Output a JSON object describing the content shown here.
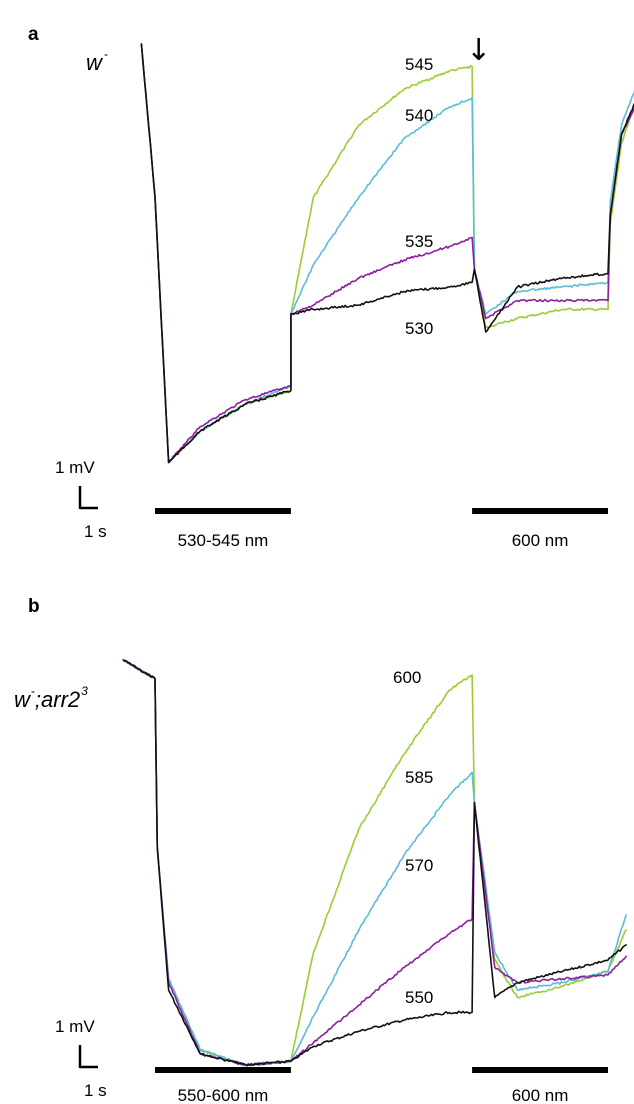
{
  "colors": {
    "green": "#9acd32",
    "cyan": "#5bbcd8",
    "purple": "#8b1fa0",
    "black": "#111111"
  },
  "chart_data": [
    {
      "type": "line",
      "panel": "a",
      "genotype_main": "w",
      "genotype_sup": "-",
      "scale_bar": {
        "voltage": "1 mV",
        "time": "1 s"
      },
      "stimuli": [
        {
          "label": "530-545 nm",
          "start_s": 0.0,
          "end_s": 3.0
        },
        {
          "label": "600 nm",
          "start_s": 7.0,
          "end_s": 10.0
        }
      ],
      "arrow": "↓",
      "series": [
        {
          "name": "545",
          "color": "#9acd32",
          "points": [
            [
              -0.3,
              0.0
            ],
            [
              0.0,
              -3.4
            ],
            [
              0.3,
              -9.3
            ],
            [
              1.0,
              -8.6
            ],
            [
              2.0,
              -8.0
            ],
            [
              3.0,
              -7.7
            ],
            [
              3.0,
              -6.0
            ],
            [
              3.5,
              -3.4
            ],
            [
              4.5,
              -1.8
            ],
            [
              5.5,
              -1.0
            ],
            [
              6.5,
              -0.6
            ],
            [
              7.0,
              -0.5
            ],
            [
              7.05,
              -5.0
            ],
            [
              7.3,
              -6.3
            ],
            [
              8.0,
              -6.1
            ],
            [
              9.0,
              -5.9
            ],
            [
              10.0,
              -5.9
            ],
            [
              10.05,
              -4.0
            ],
            [
              10.3,
              -2.2
            ],
            [
              10.6,
              -1.3
            ]
          ]
        },
        {
          "name": "540",
          "color": "#5bbcd8",
          "points": [
            [
              -0.3,
              0.0
            ],
            [
              0.0,
              -3.4
            ],
            [
              0.3,
              -9.3
            ],
            [
              1.0,
              -8.6
            ],
            [
              2.0,
              -8.0
            ],
            [
              3.0,
              -7.6
            ],
            [
              3.0,
              -6.0
            ],
            [
              3.5,
              -4.9
            ],
            [
              4.5,
              -3.4
            ],
            [
              5.5,
              -2.1
            ],
            [
              6.5,
              -1.4
            ],
            [
              7.0,
              -1.2
            ],
            [
              7.05,
              -5.0
            ],
            [
              7.3,
              -6.0
            ],
            [
              8.0,
              -5.5
            ],
            [
              9.0,
              -5.4
            ],
            [
              10.0,
              -5.3
            ],
            [
              10.05,
              -3.5
            ],
            [
              10.3,
              -1.8
            ],
            [
              10.6,
              -1.0
            ]
          ]
        },
        {
          "name": "535",
          "color": "#8b1fa0",
          "points": [
            [
              -0.3,
              0.0
            ],
            [
              0.0,
              -3.4
            ],
            [
              0.3,
              -9.3
            ],
            [
              1.0,
              -8.5
            ],
            [
              2.0,
              -7.9
            ],
            [
              3.0,
              -7.6
            ],
            [
              3.0,
              -6.0
            ],
            [
              3.5,
              -5.8
            ],
            [
              4.0,
              -5.5
            ],
            [
              4.5,
              -5.2
            ],
            [
              5.5,
              -4.8
            ],
            [
              6.5,
              -4.5
            ],
            [
              7.0,
              -4.3
            ],
            [
              7.05,
              -5.0
            ],
            [
              7.3,
              -6.1
            ],
            [
              8.0,
              -5.7
            ],
            [
              9.0,
              -5.7
            ],
            [
              10.0,
              -5.7
            ],
            [
              10.05,
              -3.8
            ],
            [
              10.3,
              -2.0
            ],
            [
              10.6,
              -1.4
            ]
          ]
        },
        {
          "name": "530",
          "color": "#111111",
          "points": [
            [
              -0.3,
              0.0
            ],
            [
              0.0,
              -3.4
            ],
            [
              0.3,
              -9.3
            ],
            [
              1.0,
              -8.6
            ],
            [
              2.0,
              -8.0
            ],
            [
              3.0,
              -7.7
            ],
            [
              3.0,
              -6.0
            ],
            [
              3.5,
              -5.9
            ],
            [
              4.5,
              -5.8
            ],
            [
              5.5,
              -5.5
            ],
            [
              6.5,
              -5.4
            ],
            [
              7.0,
              -5.3
            ],
            [
              7.05,
              -5.0
            ],
            [
              7.3,
              -6.4
            ],
            [
              8.0,
              -5.4
            ],
            [
              9.0,
              -5.2
            ],
            [
              10.0,
              -5.1
            ],
            [
              10.05,
              -3.8
            ],
            [
              10.3,
              -2.0
            ],
            [
              10.6,
              -1.3
            ]
          ]
        }
      ]
    },
    {
      "type": "line",
      "panel": "b",
      "genotype_main": "w",
      "genotype_sup": "-",
      "genotype_rest": ";arr2",
      "genotype_sup2": "3",
      "scale_bar": {
        "voltage": "1 mV",
        "time": "1 s"
      },
      "stimuli": [
        {
          "label": "550-600 nm",
          "start_s": 0.0,
          "end_s": 3.0
        },
        {
          "label": "600 nm",
          "start_s": 7.0,
          "end_s": 10.0
        }
      ],
      "series": [
        {
          "name": "600",
          "color": "#9acd32",
          "points": [
            [
              -0.7,
              0.0
            ],
            [
              0.0,
              -0.5
            ],
            [
              0.05,
              -5.0
            ],
            [
              0.3,
              -8.5
            ],
            [
              1.0,
              -10.4
            ],
            [
              2.0,
              -10.8
            ],
            [
              3.0,
              -10.7
            ],
            [
              3.5,
              -7.8
            ],
            [
              4.5,
              -4.5
            ],
            [
              5.5,
              -2.5
            ],
            [
              6.5,
              -0.8
            ],
            [
              7.0,
              -0.4
            ],
            [
              7.05,
              -3.8
            ],
            [
              7.5,
              -8.0
            ],
            [
              8.0,
              -9.0
            ],
            [
              9.0,
              -8.7
            ],
            [
              10.0,
              -8.3
            ],
            [
              10.4,
              -7.2
            ]
          ]
        },
        {
          "name": "585",
          "color": "#5bbcd8",
          "points": [
            [
              -0.7,
              0.0
            ],
            [
              0.0,
              -0.5
            ],
            [
              0.05,
              -5.0
            ],
            [
              0.3,
              -8.5
            ],
            [
              1.0,
              -10.4
            ],
            [
              2.0,
              -10.8
            ],
            [
              3.0,
              -10.7
            ],
            [
              3.5,
              -9.5
            ],
            [
              4.5,
              -7.2
            ],
            [
              5.5,
              -5.2
            ],
            [
              6.5,
              -3.6
            ],
            [
              7.0,
              -3.0
            ],
            [
              7.05,
              -3.8
            ],
            [
              7.5,
              -7.8
            ],
            [
              8.0,
              -8.8
            ],
            [
              9.0,
              -8.6
            ],
            [
              10.0,
              -8.3
            ],
            [
              10.4,
              -6.8
            ]
          ]
        },
        {
          "name": "570",
          "color": "#8b1fa0",
          "points": [
            [
              -0.7,
              0.0
            ],
            [
              0.0,
              -0.5
            ],
            [
              0.05,
              -5.0
            ],
            [
              0.3,
              -8.6
            ],
            [
              1.0,
              -10.5
            ],
            [
              2.0,
              -10.8
            ],
            [
              3.0,
              -10.7
            ],
            [
              3.5,
              -10.2
            ],
            [
              4.5,
              -9.2
            ],
            [
              5.5,
              -8.2
            ],
            [
              6.5,
              -7.3
            ],
            [
              7.0,
              -6.9
            ],
            [
              7.05,
              -3.8
            ],
            [
              7.5,
              -8.2
            ],
            [
              8.0,
              -8.6
            ],
            [
              9.0,
              -8.5
            ],
            [
              10.0,
              -8.4
            ],
            [
              10.4,
              -7.9
            ]
          ]
        },
        {
          "name": "550",
          "color": "#111111",
          "points": [
            [
              -0.7,
              0.0
            ],
            [
              0.0,
              -0.5
            ],
            [
              0.05,
              -5.0
            ],
            [
              0.3,
              -8.8
            ],
            [
              1.0,
              -10.5
            ],
            [
              2.0,
              -10.8
            ],
            [
              3.0,
              -10.7
            ],
            [
              3.5,
              -10.3
            ],
            [
              4.5,
              -9.9
            ],
            [
              5.5,
              -9.6
            ],
            [
              6.5,
              -9.4
            ],
            [
              7.0,
              -9.4
            ],
            [
              7.05,
              -3.8
            ],
            [
              7.5,
              -9.0
            ],
            [
              8.0,
              -8.6
            ],
            [
              9.0,
              -8.3
            ],
            [
              10.0,
              -8.0
            ],
            [
              10.4,
              -7.6
            ]
          ]
        }
      ]
    }
  ]
}
